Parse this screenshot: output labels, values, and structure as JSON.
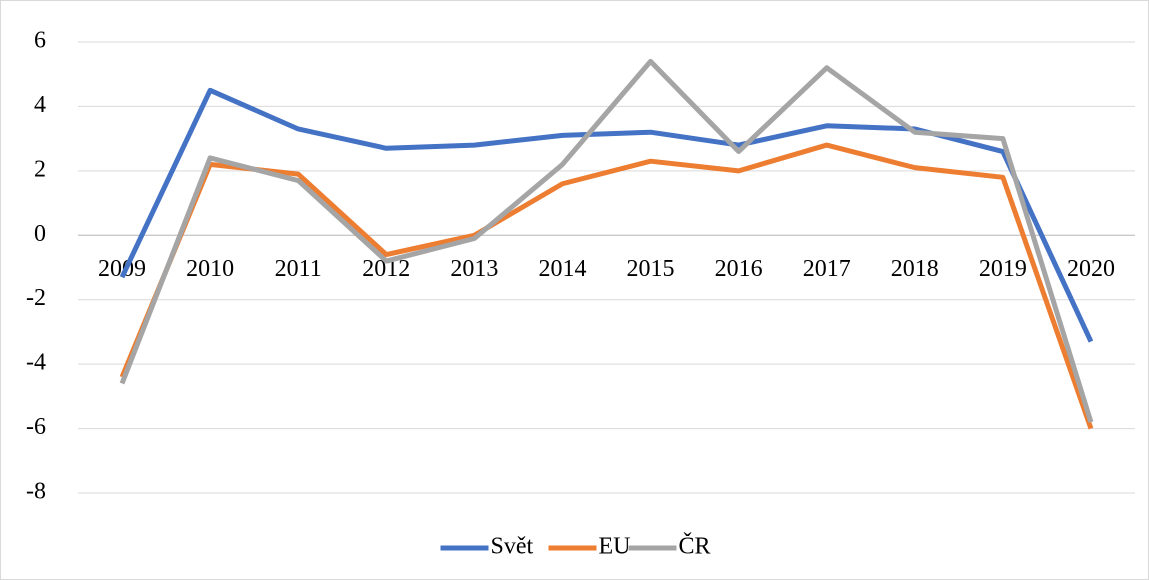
{
  "chart_data": {
    "type": "line",
    "categories": [
      "2009",
      "2010",
      "2011",
      "2012",
      "2013",
      "2014",
      "2015",
      "2016",
      "2017",
      "2018",
      "2019",
      "2020"
    ],
    "series": [
      {
        "name": "Svět",
        "color": "#4472c4",
        "values": [
          -1.3,
          4.5,
          3.3,
          2.7,
          2.8,
          3.1,
          3.2,
          2.8,
          3.4,
          3.3,
          2.6,
          -3.3
        ]
      },
      {
        "name": "EU",
        "color": "#ed7d31",
        "values": [
          -4.4,
          2.2,
          1.9,
          -0.6,
          0,
          1.6,
          2.3,
          2.0,
          2.8,
          2.1,
          1.8,
          -6.0
        ]
      },
      {
        "name": "ČR",
        "color": "#a5a5a5",
        "values": [
          -4.6,
          2.4,
          1.7,
          -0.8,
          -0.1,
          2.2,
          5.4,
          2.6,
          5.2,
          3.2,
          3.0,
          -5.8
        ]
      }
    ],
    "ylim": [
      -8,
      6
    ],
    "yticks": [
      -8,
      -6,
      -4,
      -2,
      0,
      2,
      4,
      6
    ],
    "grid": true,
    "legend": "bottom"
  }
}
